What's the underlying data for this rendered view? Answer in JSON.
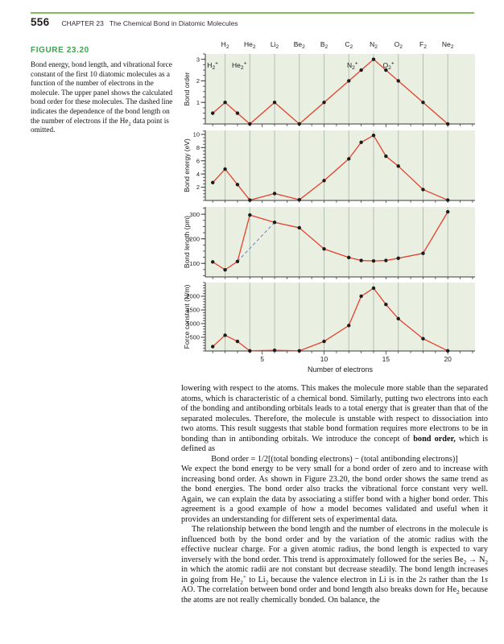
{
  "page": {
    "number": "556",
    "chapter_label": "CHAPTER 23",
    "chapter_title": "The Chemical Bond in Diatomic Molecules"
  },
  "figure": {
    "label": "FIGURE 23.20",
    "caption": "Bond energy, bond length, and vibrational force constant of the first 10 diatomic molecules as a function of the number of electrons in the molecule. The upper panel shows the calculated bond order for these molecules. The dashed line indicates the dependence of the bond length on the number of electrons if the He₂ data point is omitted."
  },
  "colors": {
    "accent_green": "#3aa64a",
    "rule_green": "#84bb5e",
    "plot_bg": "#e9f0e2",
    "gridline": "#b3beb3",
    "line_red": "#e5402d",
    "marker": "#1c1c1c",
    "dashed_blue": "#7b8fc7",
    "axis": "#3a3a3a",
    "tick_label": "#222222"
  },
  "chart_data": {
    "type": "line",
    "x_label": "Number of electrons",
    "x": [
      1,
      2,
      3,
      4,
      6,
      8,
      10,
      12,
      13,
      14,
      15,
      16,
      18,
      20
    ],
    "molecules": [
      "H₂⁺",
      "H₂",
      "He₂⁺",
      "He₂",
      "Li₂",
      "Be₂",
      "B₂",
      "C₂",
      "N₂⁺",
      "N₂",
      "O₂⁺",
      "O₂",
      "F₂",
      "Ne₂"
    ],
    "x_range": [
      0.4,
      22.2
    ],
    "x_gridlines": [
      2,
      4,
      6,
      8,
      10,
      12,
      14,
      16,
      18,
      20
    ],
    "x_ticks": [
      5,
      10,
      15,
      20
    ],
    "top_labels": {
      "x": [
        2,
        4,
        6,
        8,
        10,
        12,
        14,
        16,
        18,
        20
      ],
      "text": [
        "H₂",
        "He₂",
        "Li₂",
        "Be₂",
        "B₂",
        "C₂",
        "N₂",
        "O₂",
        "F₂",
        "Ne₂"
      ]
    },
    "panels": [
      {
        "ylabel": "Bond order",
        "values": [
          0.5,
          1,
          0.5,
          0,
          1,
          0,
          1,
          2,
          2.5,
          3,
          2.5,
          2,
          1,
          0
        ],
        "ylim": [
          0,
          3.25
        ],
        "yticks": [
          1,
          2,
          3
        ],
        "yminor": 0.25,
        "annotations": [
          {
            "text": "H₂⁺",
            "x": 0.55,
            "y": 2.62
          },
          {
            "text": "He₂⁺",
            "x": 2.55,
            "y": 2.62
          },
          {
            "text": "N₂⁺",
            "x": 11.85,
            "y": 2.62
          },
          {
            "text": "O₂⁺",
            "x": 14.75,
            "y": 2.62
          }
        ]
      },
      {
        "ylabel": "Bond energy (eV)",
        "values": [
          2.7,
          4.75,
          2.4,
          0.05,
          1.05,
          0.1,
          3.0,
          6.3,
          8.8,
          9.85,
          6.7,
          5.2,
          1.65,
          0.05
        ],
        "ylim": [
          0,
          10.6
        ],
        "yticks": [
          2,
          4,
          6,
          8,
          10
        ],
        "yminor": 0.5
      },
      {
        "ylabel": "Bond length (pm)",
        "values": [
          106,
          74,
          108,
          297,
          267,
          245,
          159,
          124,
          112,
          110,
          112,
          121,
          141,
          310
        ],
        "ylim": [
          45,
          330
        ],
        "yticks": [
          100,
          200,
          300
        ],
        "yminor": 25,
        "dashed_line": {
          "x": [
            3,
            6
          ],
          "values": [
            108,
            267
          ],
          "note": "trend if He₂ omitted"
        }
      },
      {
        "ylabel": "Force constant (N/m)",
        "values": [
          160,
          575,
          350,
          5,
          25,
          5,
          350,
          930,
          2000,
          2295,
          1700,
          1180,
          450,
          5
        ],
        "ylim": [
          0,
          2500
        ],
        "yticks": [
          500,
          1000,
          1500,
          2000
        ],
        "yminor": 100,
        "has_x_labels": true
      }
    ]
  },
  "body": {
    "paragraphs": [
      [
        {
          "t": "lowering with respect to the atoms. This makes the molecule more stable than the separated atoms, which is characteristic of a chemical bond. Similarly, putting two electrons into each of the bonding and antibonding orbitals leads to a total energy that is greater than that of the separated molecules. Therefore, the molecule is unstable with respect to dissociation into two atoms. This result suggests that stable bond formation requires more electrons to be in bonding than in antibonding orbitals. We introduce the concept of "
        },
        {
          "t": "bond order,",
          "b": true
        },
        {
          "t": " which is defined as"
        }
      ],
      [
        {
          "t": "We expect the bond energy to be very small for a bond order of zero and to increase with increasing bond order. As shown in Figure 23.20, the bond order shows the same trend as the bond energies. The bond order also tracks the vibrational force constant very well. Again, we can explain the data by associating a stiffer bond with a higher bond order. This agreement is a good example of how a model becomes validated and useful when it provides an understanding for different sets of experimental data."
        }
      ],
      [
        {
          "t": "The relationship between the bond length and the number of electrons in the molecule is influenced both by the bond order and by the variation of the atomic radius with the effective nuclear charge. For a given atomic radius, the bond length is expected to vary inversely with the bond order. This trend is approximately followed for the series Be₂ → N₂ in which the atomic radii are not constant but decrease steadily. The bond length increases in going from He₂⁺ to Li₂ because the valence electron in Li is in the 2"
        },
        {
          "t": "s",
          "i": true
        },
        {
          "t": " rather than the 1"
        },
        {
          "t": "s",
          "i": true
        },
        {
          "t": " AO. The correlation between bond order and bond length also breaks down for He₂ because the atoms are not really chemically bonded. On balance, the"
        }
      ]
    ],
    "equation": "Bond order = 1/2[(total bonding electrons) − (total antibonding electrons)]"
  }
}
